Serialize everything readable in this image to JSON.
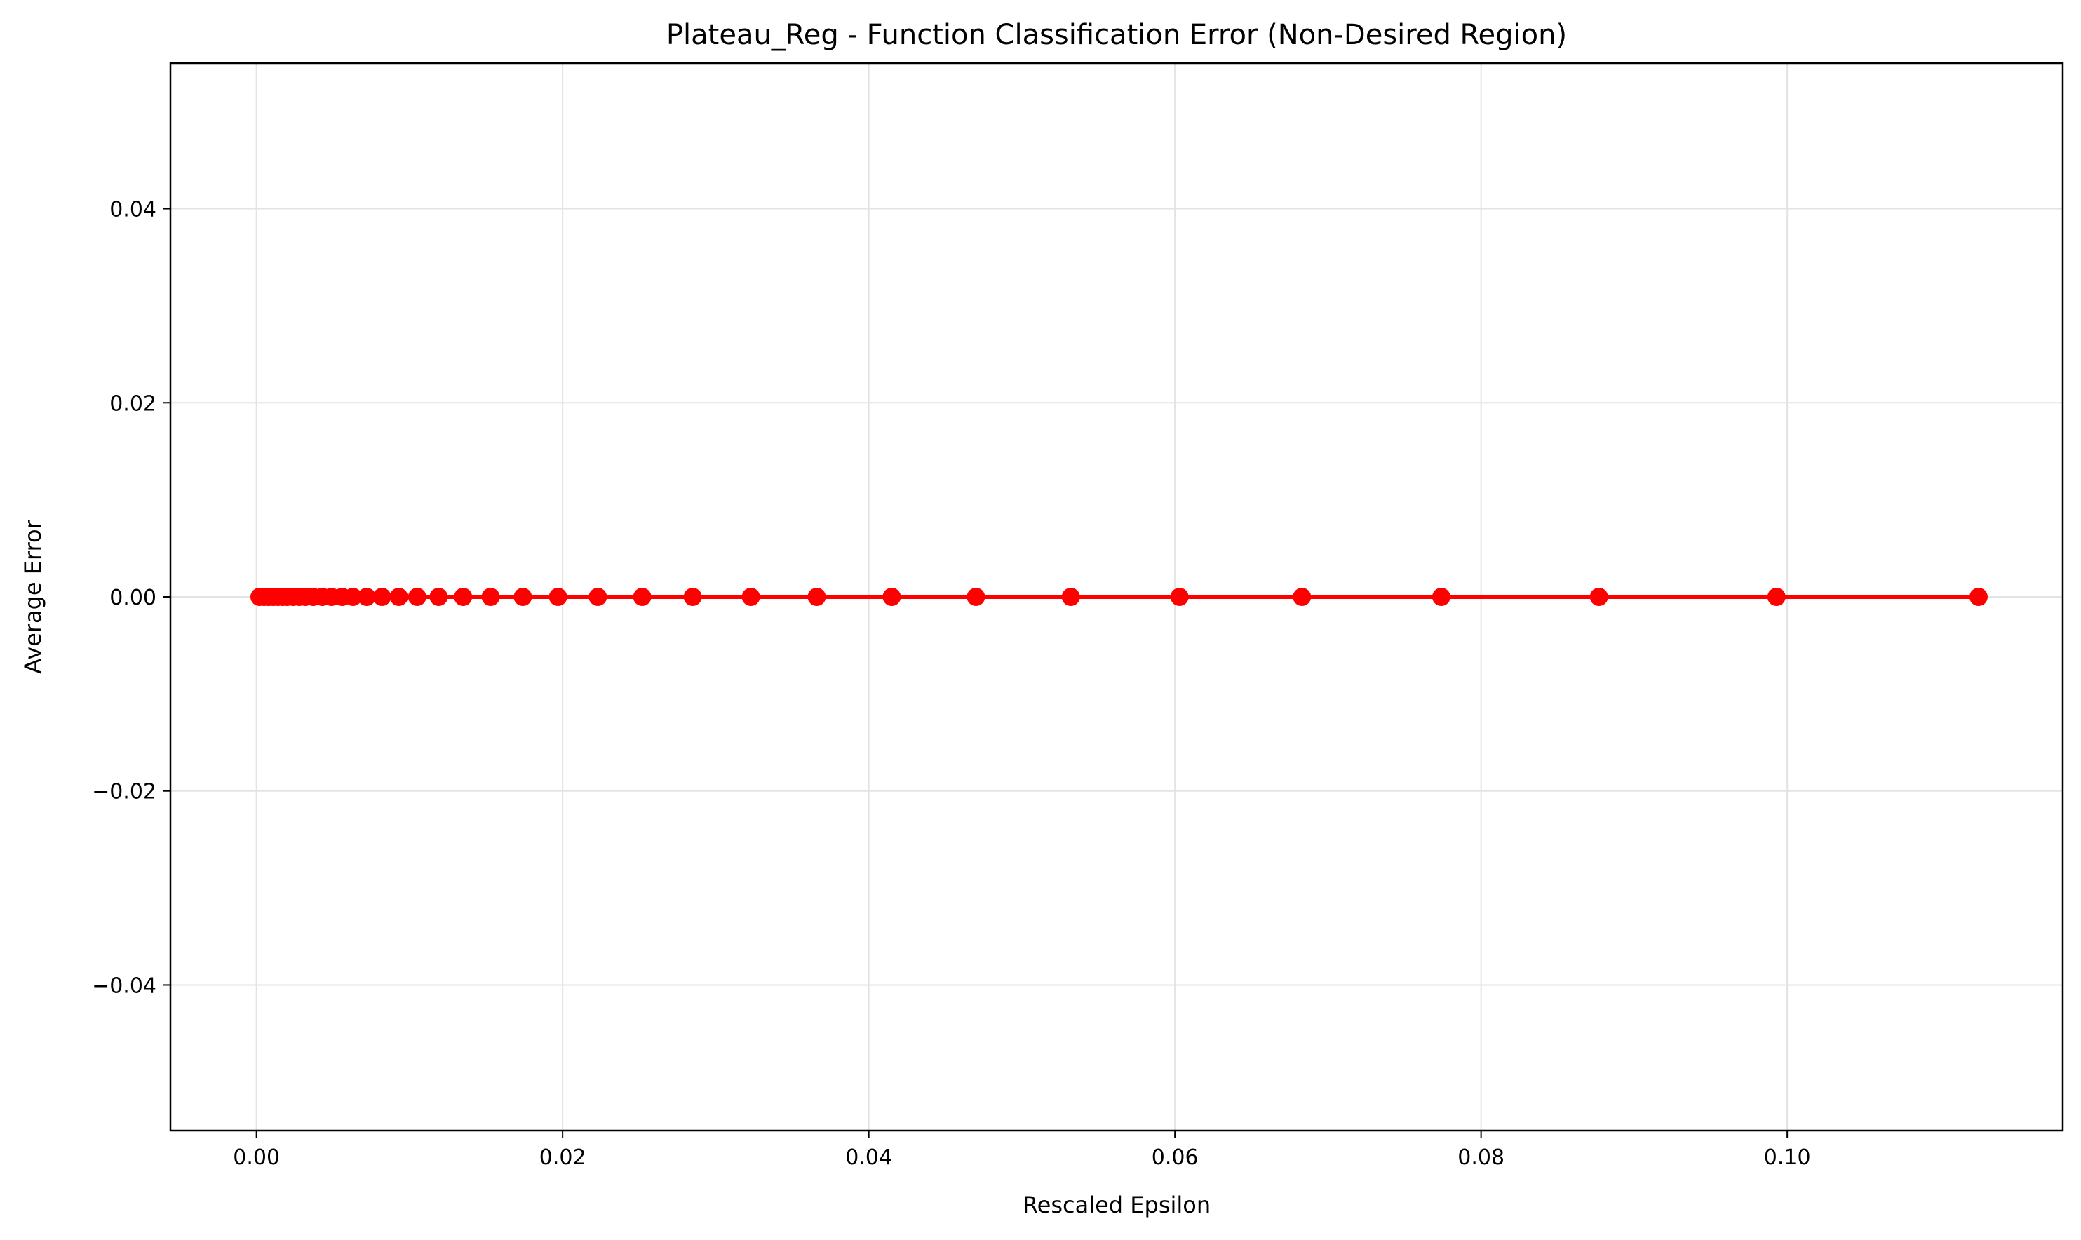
{
  "chart_data": {
    "type": "line",
    "title": "Plateau_Reg - Function Classification Error (Non-Desired Region)",
    "xlabel": "Rescaled Epsilon",
    "ylabel": "Average Error",
    "xlim": [
      -0.00562,
      0.118
    ],
    "ylim": [
      -0.055,
      0.055
    ],
    "x_ticks": [
      0.0,
      0.02,
      0.04,
      0.06,
      0.08,
      0.1
    ],
    "x_tick_labels": [
      "0.00",
      "0.02",
      "0.04",
      "0.06",
      "0.08",
      "0.10"
    ],
    "y_ticks": [
      0.04,
      0.02,
      0.0,
      -0.02,
      -0.04
    ],
    "y_tick_labels": [
      "0.04",
      "0.02",
      "0.00",
      "−0.02",
      "−0.04"
    ],
    "grid": true,
    "series": [
      {
        "color": "#ff0000",
        "marker": "circle",
        "x": [
          0.0002,
          0.0005,
          0.0008,
          0.0011,
          0.0014,
          0.0017,
          0.002,
          0.0024,
          0.0028,
          0.0032,
          0.0037,
          0.0043,
          0.0049,
          0.0056,
          0.0063,
          0.0072,
          0.0082,
          0.0093,
          0.0105,
          0.0119,
          0.0135,
          0.0153,
          0.0174,
          0.0197,
          0.0223,
          0.0252,
          0.0285,
          0.0323,
          0.0366,
          0.0415,
          0.047,
          0.0532,
          0.0603,
          0.0683,
          0.0774,
          0.0877,
          0.0993,
          0.1125
        ],
        "values": [
          0,
          0,
          0,
          0,
          0,
          0,
          0,
          0,
          0,
          0,
          0,
          0,
          0,
          0,
          0,
          0,
          0,
          0,
          0,
          0,
          0,
          0,
          0,
          0,
          0,
          0,
          0,
          0,
          0,
          0,
          0,
          0,
          0,
          0,
          0,
          0,
          0,
          0
        ]
      }
    ]
  }
}
